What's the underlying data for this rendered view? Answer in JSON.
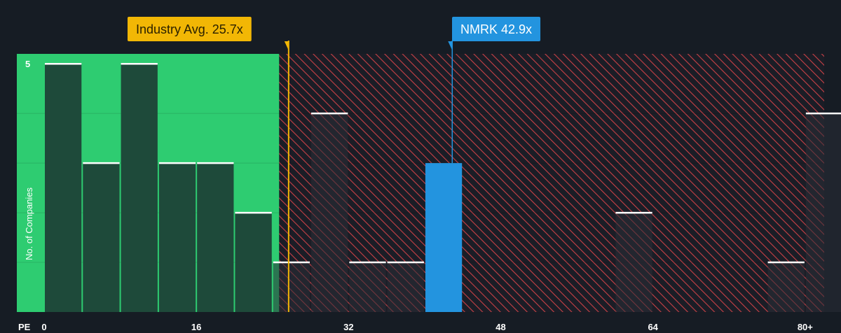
{
  "chart_data": {
    "type": "bar",
    "xlabel": "PE",
    "ylabel": "No. of Companies",
    "x_ticks": [
      "0",
      "16",
      "32",
      "48",
      "64",
      "80+"
    ],
    "x_tick_values": [
      0,
      16,
      32,
      48,
      64,
      80
    ],
    "xlim": [
      0,
      82
    ],
    "y_ticks": [
      "5"
    ],
    "y_tick_values": [
      5
    ],
    "ylim": [
      0,
      5.2
    ],
    "bin_width": 4,
    "bars": [
      {
        "x": 0,
        "value": 5
      },
      {
        "x": 4,
        "value": 3
      },
      {
        "x": 8,
        "value": 5
      },
      {
        "x": 12,
        "value": 3
      },
      {
        "x": 16,
        "value": 3
      },
      {
        "x": 20,
        "value": 2
      },
      {
        "x": 24,
        "value": 1
      },
      {
        "x": 28,
        "value": 4
      },
      {
        "x": 32,
        "value": 1
      },
      {
        "x": 36,
        "value": 1
      },
      {
        "x": 40,
        "value": 3
      },
      {
        "x": 60,
        "value": 2
      },
      {
        "x": 76,
        "value": 1
      },
      {
        "x": 80,
        "value": 4
      }
    ],
    "fair_region_end": 24.7,
    "industry_avg": {
      "label": "Industry Avg. 25.7x",
      "value": 25.7
    },
    "company": {
      "label": "NMRK 42.9x",
      "value": 42.9,
      "bin_start": 40
    },
    "grid": true,
    "colors": {
      "background": "#161c24",
      "fair_region": "#2ecc71",
      "expensive_hatch": "#e0474c",
      "bar_fill": "#1e4a3a",
      "bar_cap": "#ffffff",
      "company_bar": "#2394df",
      "industry_callout": "#f2b705"
    }
  }
}
